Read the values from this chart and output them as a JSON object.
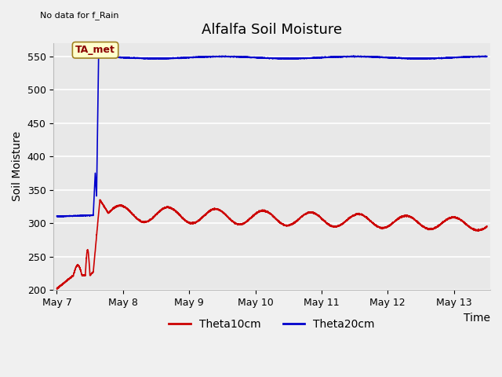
{
  "title": "Alfalfa Soil Moisture",
  "xlabel": "Time",
  "ylabel": "Soil Moisture",
  "top_left_text": "No data for f_Rain",
  "annotation_text": "TA_met",
  "ylim": [
    200,
    570
  ],
  "yticks": [
    200,
    250,
    300,
    350,
    400,
    450,
    500,
    550
  ],
  "xlim": [
    -0.05,
    6.55
  ],
  "xtick_positions": [
    0,
    1,
    2,
    3,
    4,
    5,
    6
  ],
  "xtick_labels": [
    "May 7",
    "May 8",
    "May 9",
    "May 10",
    "May 11",
    "May 12",
    "May 13"
  ],
  "background_color": "#f0f0f0",
  "axes_bg_color": "#e8e8e8",
  "grid_color": "#ffffff",
  "red_color": "#cc0000",
  "blue_color": "#0000cc",
  "legend_labels": [
    "Theta10cm",
    "Theta20cm"
  ],
  "title_fontsize": 13,
  "label_fontsize": 10,
  "tick_fontsize": 9
}
